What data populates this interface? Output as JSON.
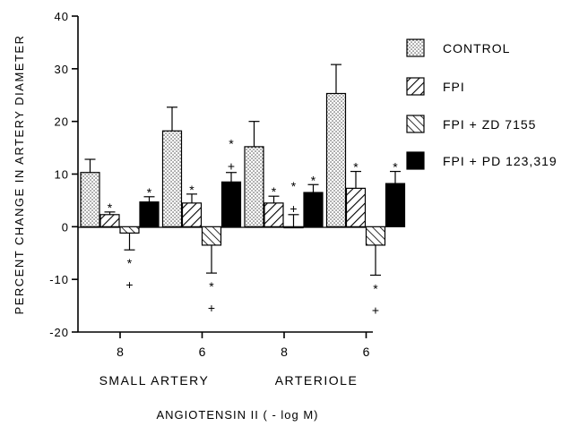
{
  "chart_data": {
    "type": "bar",
    "xlabel": "ANGIOTENSIN II ( - log M)",
    "ylabel": "PERCENT CHANGE IN ARTERY DIAMETER",
    "ylim": [
      -20,
      40
    ],
    "yticks": [
      40,
      30,
      20,
      10,
      0,
      -10,
      -20
    ],
    "ytick_labels": [
      "40",
      "30",
      "20",
      "10",
      "0",
      "-10",
      "-20"
    ],
    "grid": false,
    "legend_position": "right",
    "groups": [
      {
        "label": "SMALL ARTERY",
        "categories": [
          0,
          1
        ]
      },
      {
        "label": "ARTERIOLE",
        "categories": [
          2,
          3
        ]
      }
    ],
    "categories": [
      "8",
      "6",
      "8",
      "6"
    ],
    "series": [
      {
        "name": "CONTROL",
        "pattern": "dots",
        "values": [
          10.3,
          18.2,
          15.2,
          25.3
        ],
        "errors": [
          2.5,
          4.5,
          4.8,
          5.5
        ],
        "marks": [
          "",
          "",
          "",
          ""
        ]
      },
      {
        "name": "FPI",
        "pattern": "hatch-back",
        "values": [
          2.3,
          4.5,
          4.5,
          7.3
        ],
        "errors": [
          0.5,
          1.7,
          1.3,
          3.2
        ],
        "marks": [
          "*",
          "*",
          "*",
          "*"
        ]
      },
      {
        "name": "FPI + ZD 7155",
        "pattern": "hatch-fwd",
        "values": [
          -1.2,
          -3.5,
          0,
          -3.5
        ],
        "errors": [
          3.2,
          5.3,
          2.3,
          5.7
        ],
        "marks": [
          "*+",
          "*+",
          "*+",
          "*+"
        ]
      },
      {
        "name": "FPI + PD 123,319",
        "pattern": "solid",
        "values": [
          4.7,
          8.5,
          6.5,
          8.2
        ],
        "errors": [
          1.0,
          1.8,
          1.5,
          2.3
        ],
        "marks": [
          "*",
          "*+",
          "*",
          "*"
        ]
      }
    ]
  }
}
